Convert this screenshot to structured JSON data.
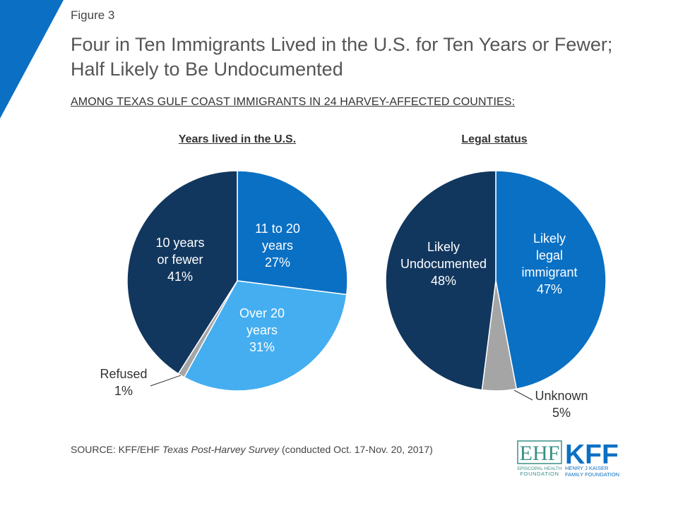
{
  "figure_label": "Figure 3",
  "title": "Four in Ten Immigrants Lived in the U.S. for Ten Years or Fewer; Half Likely to Be Undocumented",
  "subtitle": "AMONG TEXAS GULF COAST IMMIGRANTS IN 24 HARVEY-AFFECTED COUNTIES:",
  "colors": {
    "dark_navy": "#12375e",
    "medium_blue": "#0a70c4",
    "light_blue": "#44aef0",
    "gray": "#a5a5a5",
    "brand_blue": "#0b70c4"
  },
  "chart_data": [
    {
      "type": "pie",
      "title": "Years lived in the U.S.",
      "slices": [
        {
          "label_lines": [
            "11 to 20",
            "years",
            "27%"
          ],
          "value": 27,
          "color": "#0a70c4",
          "label_color": "#ffffff"
        },
        {
          "label_lines": [
            "Over 20",
            "years",
            "31%"
          ],
          "value": 31,
          "color": "#44aef0",
          "label_color": "#ffffff"
        },
        {
          "label_lines": [
            "Refused",
            "1%"
          ],
          "value": 1,
          "color": "#a5a5a5",
          "label_color": "#333333"
        },
        {
          "label_lines": [
            "10 years",
            "or fewer",
            "41%"
          ],
          "value": 41,
          "color": "#12375e",
          "label_color": "#ffffff"
        }
      ]
    },
    {
      "type": "pie",
      "title": "Legal status",
      "slices": [
        {
          "label_lines": [
            "Likely",
            "legal",
            "immigrant",
            "47%"
          ],
          "value": 47,
          "color": "#0a70c4",
          "label_color": "#ffffff"
        },
        {
          "label_lines": [
            "Unknown",
            "5%"
          ],
          "value": 5,
          "color": "#a5a5a5",
          "label_color": "#333333"
        },
        {
          "label_lines": [
            "Likely",
            "Undocumented",
            "48%"
          ],
          "value": 48,
          "color": "#12375e",
          "label_color": "#ffffff"
        }
      ]
    }
  ],
  "source": {
    "prefix": "SOURCE: KFF/EHF ",
    "italic": "Texas Post-Harvey Survey",
    "suffix": " (conducted Oct. 17-Nov. 20, 2017)"
  },
  "logos": {
    "ehf_letters": "EHF",
    "ehf_line1": "EPISCOPAL HEALTH",
    "ehf_line2": "FOUNDATION",
    "kff_letters": "KFF",
    "kff_line1": "HENRY J KAISER",
    "kff_line2": "FAMILY FOUNDATION"
  }
}
